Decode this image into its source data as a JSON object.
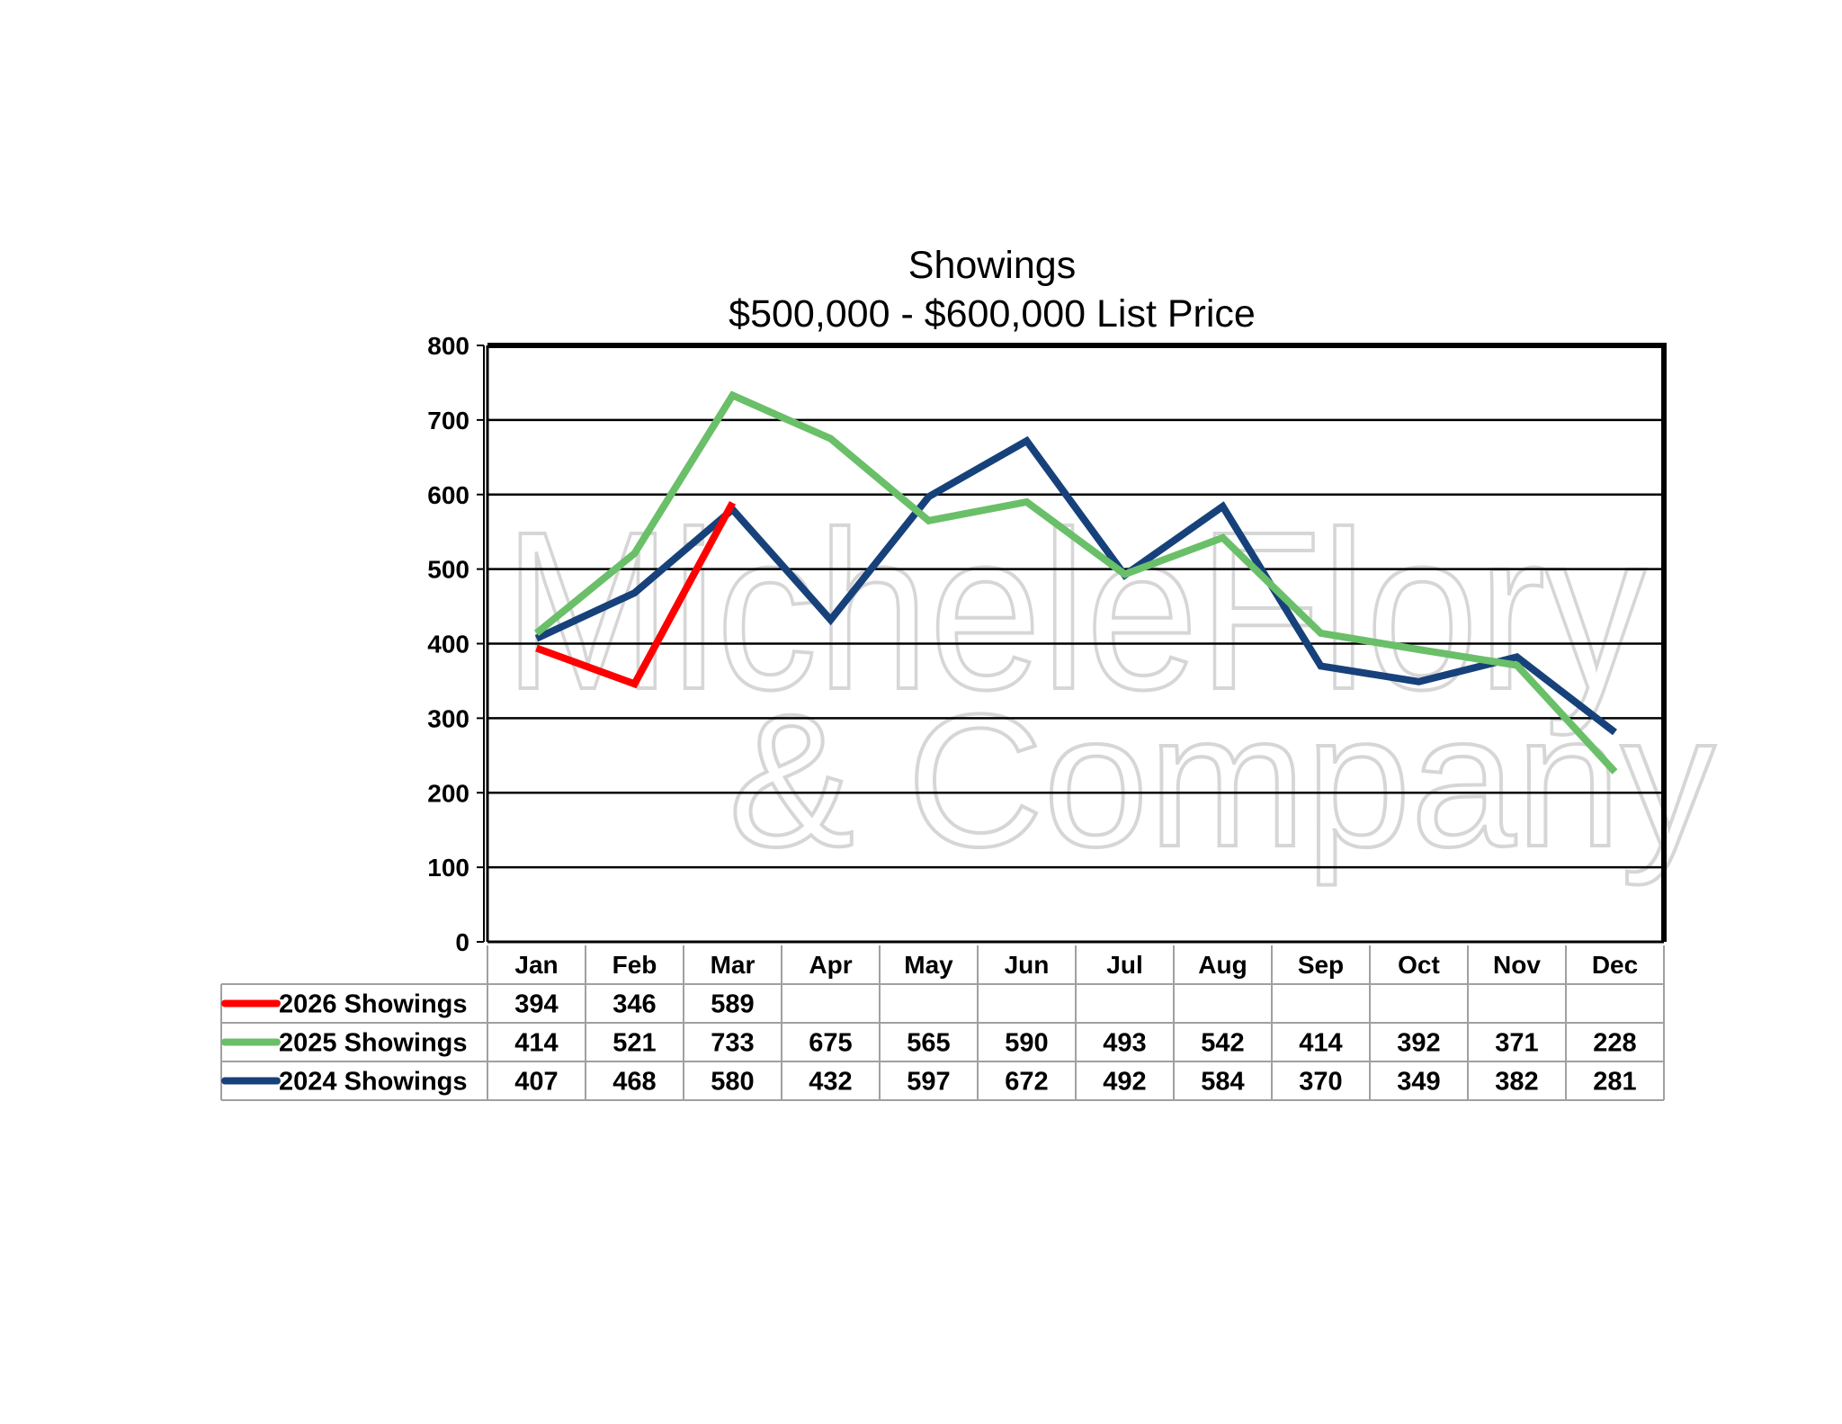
{
  "chart_data": {
    "type": "line",
    "title": "Showings",
    "subtitle": "$500,000 - $600,000 List Price",
    "xlabel": "",
    "ylabel": "",
    "ylim": [
      0,
      800
    ],
    "yticks": [
      0,
      100,
      200,
      300,
      400,
      500,
      600,
      700,
      800
    ],
    "ytick_labels": [
      "0",
      "100",
      "200",
      "300",
      "400",
      "500",
      "600",
      "700",
      "800"
    ],
    "grid": true,
    "legend_placement": "data-table-left",
    "categories": [
      "Jan",
      "Feb",
      "Mar",
      "Apr",
      "May",
      "Jun",
      "Jul",
      "Aug",
      "Sep",
      "Oct",
      "Nov",
      "Dec"
    ],
    "series": [
      {
        "name": "2026 Showings",
        "color": "#ff0000",
        "values": [
          394,
          346,
          589,
          null,
          null,
          null,
          null,
          null,
          null,
          null,
          null,
          null
        ],
        "labels": [
          "394",
          "346",
          "589",
          "",
          "",
          "",
          "",
          "",
          "",
          "",
          "",
          ""
        ]
      },
      {
        "name": "2025 Showings",
        "color": "#6abf69",
        "values": [
          414,
          521,
          733,
          675,
          565,
          590,
          493,
          542,
          414,
          392,
          371,
          228
        ],
        "labels": [
          "414",
          "521",
          "733",
          "675",
          "565",
          "590",
          "493",
          "542",
          "414",
          "392",
          "371",
          "228"
        ]
      },
      {
        "name": "2024 Showings",
        "color": "#17417a",
        "values": [
          407,
          468,
          580,
          432,
          597,
          672,
          492,
          584,
          370,
          349,
          382,
          281
        ],
        "labels": [
          "407",
          "468",
          "580",
          "432",
          "597",
          "672",
          "492",
          "584",
          "370",
          "349",
          "382",
          "281"
        ]
      }
    ]
  },
  "watermark": {
    "line1": "MicheleFlory",
    "line2": "& Company",
    "color": "#d6d6d6"
  }
}
